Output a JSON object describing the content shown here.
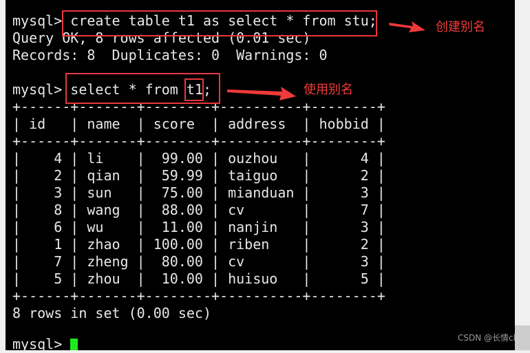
{
  "terminal": {
    "lines": [
      "mysql> create table t1 as select * from stu;",
      "Query OK, 8 rows affected (0.01 sec)",
      "Records: 8  Duplicates: 0  Warnings: 0",
      "",
      "mysql> select * from t1;",
      "+------+-------+--------+----------+--------+",
      "| id   | name  | score  | address  | hobbid |",
      "+------+-------+--------+----------+--------+",
      "|    4 | li    |  99.00 | ouzhou   |      4 |",
      "|    2 | qian  |  59.99 | taiguo   |      2 |",
      "|    3 | sun   |  75.00 | mianduan |      3 |",
      "|    8 | wang  |  88.00 | cv       |      7 |",
      "|    6 | wu    |  11.00 | nanjin   |      3 |",
      "|    1 | zhao  | 100.00 | riben    |      2 |",
      "|    7 | zheng |  80.00 | cv       |      3 |",
      "|    5 | zhou  |  10.00 | huisuo   |      5 |",
      "+------+-------+--------+----------+--------+",
      "8 rows in set (0.00 sec)",
      ""
    ],
    "prompt": "mysql> ",
    "cursor_color": "#1ee81e"
  },
  "annotations": {
    "create_alias": "创建别名",
    "use_alias": "使用别名",
    "color": "#e8383d"
  },
  "watermark": "CSDN @长情cl"
}
